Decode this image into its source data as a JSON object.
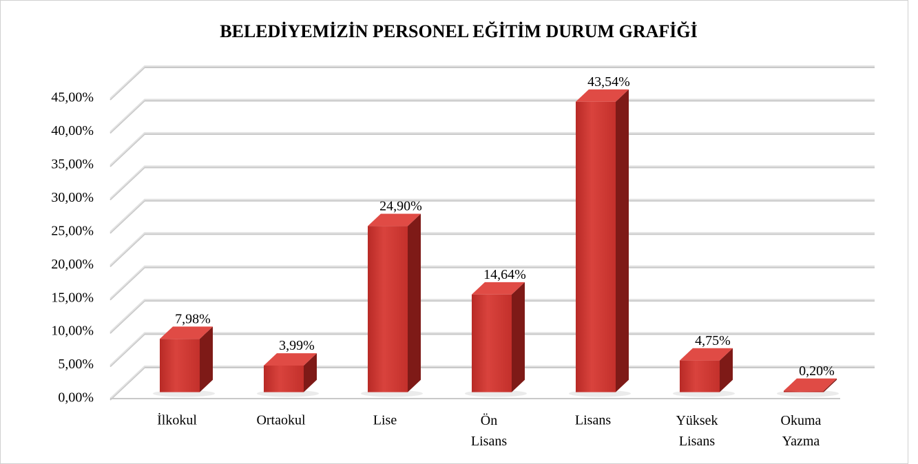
{
  "chart_data": {
    "type": "bar3d",
    "title": "BELEDİYEMİZİN PERSONEL EĞİTİM DURUM GRAFİĞİ",
    "categories": [
      "İlkokul",
      "Ortaokul",
      "Lise",
      "Ön Lisans",
      "Lisans",
      "Yüksek Lisans",
      "Okuma Yazma"
    ],
    "values": [
      7.98,
      3.99,
      24.9,
      14.64,
      43.54,
      4.75,
      0.2
    ],
    "value_labels": [
      "7,98%",
      "3,99%",
      "24,90%",
      "14,64%",
      "43,54%",
      "4,75%",
      "0,20%"
    ],
    "color": "#d13a35",
    "ylim": [
      0,
      45
    ],
    "yticks": [
      {
        "value": 0,
        "label": "0,00%"
      },
      {
        "value": 5,
        "label": "5,00%"
      },
      {
        "value": 10,
        "label": "10,00%"
      },
      {
        "value": 15,
        "label": "15,00%"
      },
      {
        "value": 20,
        "label": "20,00%"
      },
      {
        "value": 25,
        "label": "25,00%"
      },
      {
        "value": 30,
        "label": "30,00%"
      },
      {
        "value": 35,
        "label": "35,00%"
      },
      {
        "value": 40,
        "label": "40,00%"
      },
      {
        "value": 45,
        "label": "45,00%"
      }
    ],
    "grid": true
  }
}
